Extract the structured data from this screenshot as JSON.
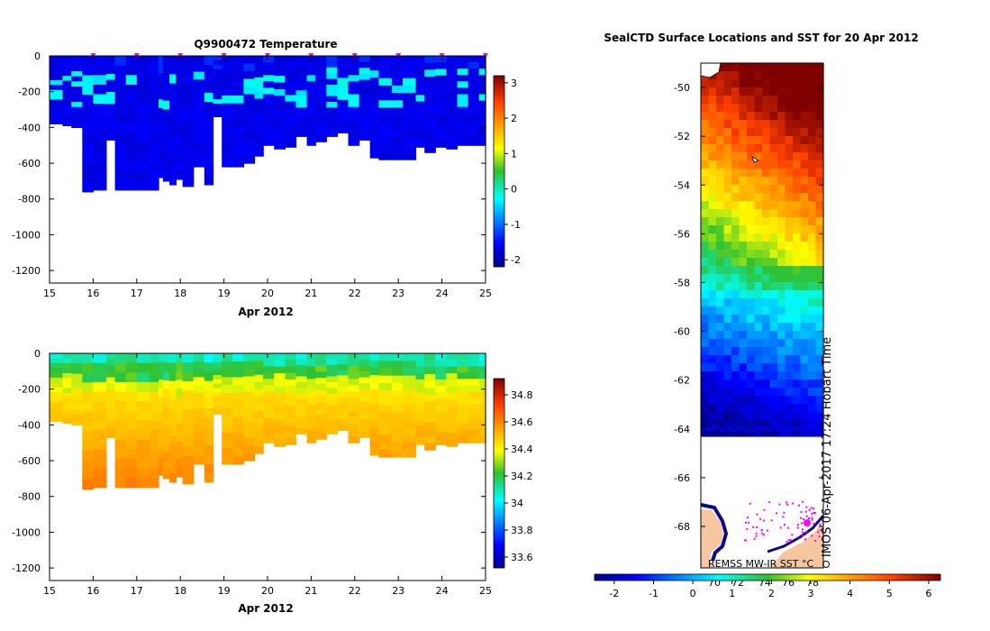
{
  "chart_data": [
    {
      "type": "heatmap",
      "title": "Q9900472  Temperature",
      "xlabel": "Apr 2012",
      "ylabel": "",
      "x_ticks": [
        "15",
        "16",
        "17",
        "18",
        "19",
        "20",
        "21",
        "22",
        "23",
        "24",
        "25"
      ],
      "xlim": [
        15,
        25
      ],
      "y_ticks": [
        "0",
        "-200",
        "-400",
        "-600",
        "-800",
        "-1000",
        "-1200"
      ],
      "ylim": [
        -1270,
        0
      ],
      "colorbar": {
        "min": -2.2,
        "max": 3.2,
        "ticks": [
          "-2",
          "-1",
          "0",
          "1",
          "2",
          "3"
        ]
      },
      "marker_days": [
        16,
        17,
        18,
        19,
        20,
        21,
        22,
        23,
        24,
        25
      ],
      "profile_depths": [
        [
          15.0,
          380
        ],
        [
          15.3,
          390
        ],
        [
          15.5,
          400
        ],
        [
          15.75,
          760
        ],
        [
          16.0,
          750
        ],
        [
          16.3,
          470
        ],
        [
          16.5,
          750
        ],
        [
          16.75,
          750
        ],
        [
          17.0,
          750
        ],
        [
          17.3,
          750
        ],
        [
          17.5,
          680
        ],
        [
          17.6,
          700
        ],
        [
          17.75,
          720
        ],
        [
          17.9,
          690
        ],
        [
          18.05,
          730
        ],
        [
          18.3,
          620
        ],
        [
          18.55,
          720
        ],
        [
          18.75,
          340
        ],
        [
          18.95,
          620
        ],
        [
          19.2,
          620
        ],
        [
          19.45,
          600
        ],
        [
          19.7,
          560
        ],
        [
          19.9,
          500
        ],
        [
          20.15,
          520
        ],
        [
          20.4,
          510
        ],
        [
          20.65,
          450
        ],
        [
          20.9,
          500
        ],
        [
          21.1,
          480
        ],
        [
          21.35,
          450
        ],
        [
          21.6,
          430
        ],
        [
          21.85,
          500
        ],
        [
          22.1,
          470
        ],
        [
          22.35,
          570
        ],
        [
          22.55,
          580
        ],
        [
          22.85,
          580
        ],
        [
          23.1,
          580
        ],
        [
          23.4,
          510
        ],
        [
          23.6,
          540
        ],
        [
          23.85,
          510
        ],
        [
          24.1,
          520
        ],
        [
          24.35,
          500
        ],
        [
          24.6,
          500
        ],
        [
          24.85,
          500
        ],
        [
          25.0,
          500
        ]
      ]
    },
    {
      "type": "heatmap",
      "title": "",
      "xlabel": "Apr 2012",
      "ylabel": "",
      "x_ticks": [
        "15",
        "16",
        "17",
        "18",
        "19",
        "20",
        "21",
        "22",
        "23",
        "24",
        "25"
      ],
      "xlim": [
        15,
        25
      ],
      "y_ticks": [
        "0",
        "-200",
        "-400",
        "-600",
        "-800",
        "-1000",
        "-1200"
      ],
      "ylim": [
        -1270,
        0
      ],
      "colorbar": {
        "min": 33.52,
        "max": 34.92,
        "ticks": [
          "33.6",
          "33.8",
          "34",
          "34.2",
          "34.4",
          "34.6",
          "34.8"
        ]
      }
    },
    {
      "type": "heatmap",
      "title": "SealCTD Surface Locations and SST for 20 Apr 2012",
      "xlabel": "",
      "ylabel": "",
      "y_ticks": [
        "-50",
        "-52",
        "-54",
        "-56",
        "-58",
        "-60",
        "-62",
        "-64",
        "-66",
        "-68"
      ],
      "ylim": [
        -69.7,
        -49.0
      ],
      "colorbar": {
        "min": -2.5,
        "max": 6.3,
        "ticks": [
          "-2",
          "-1",
          "0",
          "1",
          "2",
          "3",
          "4",
          "5",
          "6"
        ]
      },
      "sst_label": "REMSS MW-IR SST °C",
      "credit": "IMOS 06-Apr-2017 17:24 Hobart Time",
      "overlay_ticks": [
        "70",
        "72",
        "74",
        "76",
        "78"
      ]
    }
  ]
}
